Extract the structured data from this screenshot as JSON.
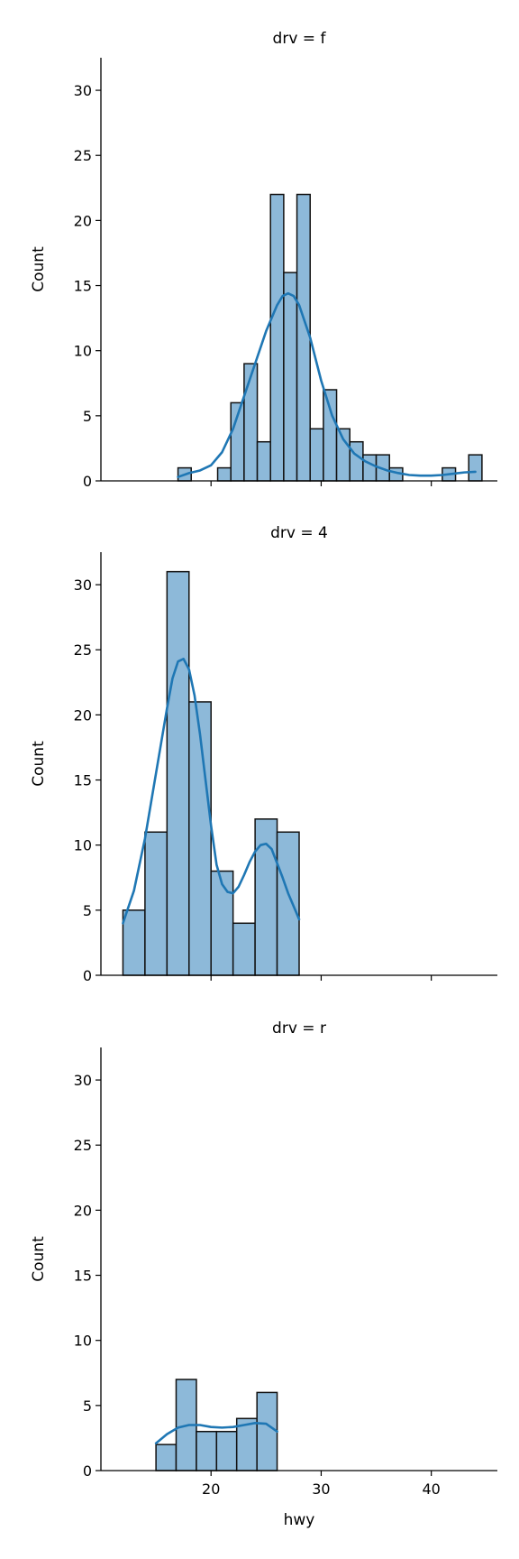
{
  "colors": {
    "bar_fill": "#8db9d9",
    "bar_edge": "#111111",
    "kde_line": "#1f77b4",
    "axis": "#000000"
  },
  "chart_data": [
    {
      "type": "bar",
      "title": "drv = f",
      "xlabel": "",
      "ylabel": "Count",
      "xlim": [
        10,
        46
      ],
      "ylim": [
        0,
        32.5
      ],
      "yticks": [
        0,
        5,
        10,
        15,
        20,
        25,
        30
      ],
      "xticks": [
        20,
        30,
        40
      ],
      "show_xtick_labels": false,
      "bins": [
        {
          "x0": 17.0,
          "x1": 18.2,
          "count": 1
        },
        {
          "x0": 18.2,
          "x1": 19.4,
          "count": 0
        },
        {
          "x0": 19.4,
          "x1": 20.6,
          "count": 0
        },
        {
          "x0": 20.6,
          "x1": 21.8,
          "count": 1
        },
        {
          "x0": 21.8,
          "x1": 23.0,
          "count": 6
        },
        {
          "x0": 23.0,
          "x1": 24.2,
          "count": 9
        },
        {
          "x0": 24.2,
          "x1": 25.4,
          "count": 3
        },
        {
          "x0": 25.4,
          "x1": 26.6,
          "count": 22
        },
        {
          "x0": 26.6,
          "x1": 27.8,
          "count": 16
        },
        {
          "x0": 27.8,
          "x1": 29.0,
          "count": 22
        },
        {
          "x0": 29.0,
          "x1": 30.2,
          "count": 4
        },
        {
          "x0": 30.2,
          "x1": 31.4,
          "count": 7
        },
        {
          "x0": 31.4,
          "x1": 32.6,
          "count": 4
        },
        {
          "x0": 32.6,
          "x1": 33.8,
          "count": 3
        },
        {
          "x0": 33.8,
          "x1": 35.0,
          "count": 2
        },
        {
          "x0": 35.0,
          "x1": 36.2,
          "count": 2
        },
        {
          "x0": 36.2,
          "x1": 37.4,
          "count": 1
        },
        {
          "x0": 37.4,
          "x1": 38.6,
          "count": 0
        },
        {
          "x0": 38.6,
          "x1": 39.8,
          "count": 0
        },
        {
          "x0": 39.8,
          "x1": 41.0,
          "count": 0
        },
        {
          "x0": 41.0,
          "x1": 42.2,
          "count": 1
        },
        {
          "x0": 42.2,
          "x1": 43.4,
          "count": 0
        },
        {
          "x0": 43.4,
          "x1": 44.6,
          "count": 2
        }
      ],
      "kde": {
        "x": [
          17,
          18,
          19,
          20,
          21,
          22,
          23,
          24,
          25,
          26,
          26.5,
          27,
          27.5,
          28,
          29,
          30,
          31,
          32,
          33,
          34,
          35,
          36,
          37,
          38,
          39,
          40,
          41,
          42,
          43,
          44
        ],
        "y": [
          0.3,
          0.6,
          0.8,
          1.2,
          2.2,
          4.0,
          6.5,
          9.0,
          11.5,
          13.5,
          14.2,
          14.4,
          14.2,
          13.5,
          11.0,
          7.7,
          5.0,
          3.2,
          2.1,
          1.5,
          1.1,
          0.8,
          0.6,
          0.45,
          0.4,
          0.4,
          0.45,
          0.55,
          0.65,
          0.7
        ]
      }
    },
    {
      "type": "bar",
      "title": "drv = 4",
      "xlabel": "",
      "ylabel": "Count",
      "xlim": [
        10,
        46
      ],
      "ylim": [
        0,
        32.5
      ],
      "yticks": [
        0,
        5,
        10,
        15,
        20,
        25,
        30
      ],
      "xticks": [
        20,
        30,
        40
      ],
      "show_xtick_labels": false,
      "bins": [
        {
          "x0": 12,
          "x1": 14,
          "count": 5
        },
        {
          "x0": 14,
          "x1": 16,
          "count": 11
        },
        {
          "x0": 16,
          "x1": 18,
          "count": 31
        },
        {
          "x0": 18,
          "x1": 20,
          "count": 21
        },
        {
          "x0": 20,
          "x1": 22,
          "count": 8
        },
        {
          "x0": 22,
          "x1": 24,
          "count": 4
        },
        {
          "x0": 24,
          "x1": 26,
          "count": 12
        },
        {
          "x0": 26,
          "x1": 28,
          "count": 11
        }
      ],
      "kde": {
        "x": [
          12,
          13,
          14,
          15,
          16,
          16.5,
          17,
          17.5,
          18,
          18.5,
          19,
          19.5,
          20,
          20.5,
          21,
          21.5,
          22,
          22.5,
          23,
          23.5,
          24,
          24.5,
          25,
          25.5,
          26,
          26.5,
          27,
          27.5,
          28
        ],
        "y": [
          4.0,
          6.5,
          10.5,
          15.5,
          20.5,
          22.8,
          24.1,
          24.3,
          23.5,
          21.5,
          18.5,
          15.0,
          11.5,
          8.5,
          7.0,
          6.4,
          6.3,
          6.8,
          7.7,
          8.7,
          9.5,
          10.0,
          10.1,
          9.7,
          8.6,
          7.5,
          6.3,
          5.3,
          4.3
        ]
      }
    },
    {
      "type": "bar",
      "title": "drv = r",
      "xlabel": "hwy",
      "ylabel": "Count",
      "xlim": [
        10,
        46
      ],
      "ylim": [
        0,
        32.5
      ],
      "yticks": [
        0,
        5,
        10,
        15,
        20,
        25,
        30
      ],
      "xticks": [
        20,
        30,
        40
      ],
      "show_xtick_labels": true,
      "bins": [
        {
          "x0": 15.0,
          "x1": 16.83,
          "count": 2
        },
        {
          "x0": 16.83,
          "x1": 18.67,
          "count": 7
        },
        {
          "x0": 18.67,
          "x1": 20.5,
          "count": 3
        },
        {
          "x0": 20.5,
          "x1": 22.33,
          "count": 3
        },
        {
          "x0": 22.33,
          "x1": 24.17,
          "count": 4
        },
        {
          "x0": 24.17,
          "x1": 26.0,
          "count": 6
        }
      ],
      "kde": {
        "x": [
          15,
          16,
          17,
          18,
          19,
          20,
          21,
          22,
          23,
          24,
          25,
          26
        ],
        "y": [
          2.1,
          2.8,
          3.3,
          3.5,
          3.5,
          3.35,
          3.3,
          3.35,
          3.5,
          3.65,
          3.6,
          3.0
        ]
      }
    }
  ]
}
